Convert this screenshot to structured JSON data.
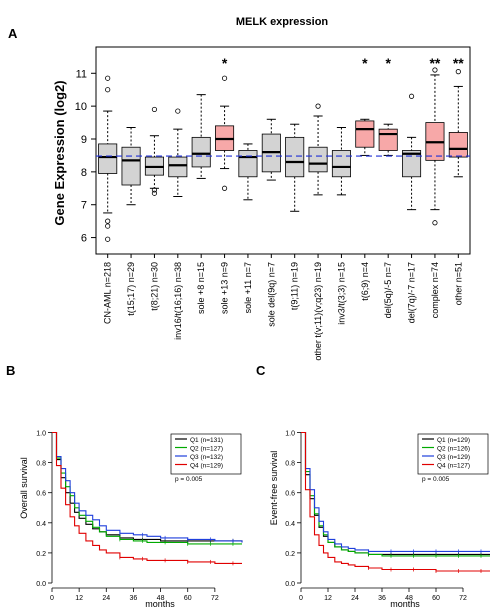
{
  "panels": {
    "a": "A",
    "b": "B",
    "c": "C"
  },
  "chart_data": [
    {
      "type": "boxplot",
      "title": "MELK expression",
      "ylabel": "Gene Expression (log2)",
      "ylim": [
        5.5,
        11.8
      ],
      "yticks": [
        6,
        7,
        8,
        9,
        10,
        11
      ],
      "reference_line": 8.48,
      "categories": [
        "CN-AML  n=218",
        "t(15;17)  n=29",
        "t(8;21)  n=30",
        "inv16/t(16;16)  n=38",
        "sole +8  n=15",
        "sole +13  n=9",
        "sole +11  n=7",
        "sole del(9q)  n=7",
        "t(9;11)  n=19",
        "other t(v;11)(v;q23)  n=19",
        "inv3/t(3;3)  n=15",
        "t(6;9)  n=4",
        "del(5q)/-5  n=7",
        "del(7q)/-7  n=17",
        "complex  n=74",
        "other  n=51"
      ],
      "boxes": [
        {
          "q1": 7.95,
          "median": 8.45,
          "q3": 8.85,
          "low": 6.75,
          "high": 9.85,
          "outliers": [
            10.85,
            10.5,
            6.5,
            6.35,
            5.95
          ],
          "highlight": false,
          "sig": ""
        },
        {
          "q1": 7.6,
          "median": 8.35,
          "q3": 8.75,
          "low": 7.0,
          "high": 9.35,
          "outliers": [],
          "highlight": false,
          "sig": ""
        },
        {
          "q1": 7.9,
          "median": 8.15,
          "q3": 8.45,
          "low": 7.5,
          "high": 9.1,
          "outliers": [
            9.9,
            7.45,
            7.35
          ],
          "highlight": false,
          "sig": ""
        },
        {
          "q1": 7.85,
          "median": 8.2,
          "q3": 8.45,
          "low": 7.25,
          "high": 9.3,
          "outliers": [
            9.85
          ],
          "highlight": false,
          "sig": ""
        },
        {
          "q1": 8.15,
          "median": 8.55,
          "q3": 9.05,
          "low": 7.8,
          "high": 10.35,
          "outliers": [],
          "highlight": false,
          "sig": ""
        },
        {
          "q1": 8.65,
          "median": 9.0,
          "q3": 9.4,
          "low": 8.1,
          "high": 10.0,
          "outliers": [
            10.85,
            7.5
          ],
          "highlight": true,
          "sig": "*"
        },
        {
          "q1": 7.85,
          "median": 8.45,
          "q3": 8.65,
          "low": 7.15,
          "high": 8.85,
          "outliers": [],
          "highlight": false,
          "sig": ""
        },
        {
          "q1": 8.0,
          "median": 8.6,
          "q3": 9.15,
          "low": 7.75,
          "high": 9.6,
          "outliers": [],
          "highlight": false,
          "sig": ""
        },
        {
          "q1": 7.85,
          "median": 8.3,
          "q3": 9.05,
          "low": 6.8,
          "high": 9.45,
          "outliers": [],
          "highlight": false,
          "sig": ""
        },
        {
          "q1": 8.0,
          "median": 8.25,
          "q3": 8.75,
          "low": 7.3,
          "high": 9.7,
          "outliers": [
            10.0
          ],
          "highlight": false,
          "sig": ""
        },
        {
          "q1": 7.85,
          "median": 8.15,
          "q3": 8.65,
          "low": 7.3,
          "high": 9.35,
          "outliers": [],
          "highlight": false,
          "sig": ""
        },
        {
          "q1": 8.75,
          "median": 9.3,
          "q3": 9.55,
          "low": 8.5,
          "high": 9.6,
          "outliers": [],
          "highlight": true,
          "sig": "*"
        },
        {
          "q1": 8.65,
          "median": 9.15,
          "q3": 9.3,
          "low": 8.5,
          "high": 9.45,
          "outliers": [],
          "highlight": true,
          "sig": "*"
        },
        {
          "q1": 7.85,
          "median": 8.55,
          "q3": 8.65,
          "low": 6.85,
          "high": 9.05,
          "outliers": [
            10.3
          ],
          "highlight": false,
          "sig": ""
        },
        {
          "q1": 8.35,
          "median": 8.9,
          "q3": 9.5,
          "low": 6.85,
          "high": 10.95,
          "outliers": [
            11.1,
            6.45
          ],
          "highlight": true,
          "sig": "**"
        },
        {
          "q1": 8.45,
          "median": 8.7,
          "q3": 9.2,
          "low": 7.85,
          "high": 10.6,
          "outliers": [
            11.05
          ],
          "highlight": true,
          "sig": "**"
        }
      ]
    },
    {
      "type": "line",
      "ylabel": "Overall survival",
      "xlabel": "months",
      "xticks": [
        0,
        12,
        24,
        36,
        48,
        60,
        72
      ],
      "yticks": [
        0.0,
        0.2,
        0.4,
        0.6,
        0.8,
        1.0
      ],
      "xlim": [
        0,
        84
      ],
      "ylim": [
        0,
        1.03
      ],
      "legend_position": "top-right",
      "annotation": "p = 0.005",
      "series": [
        {
          "name": "Q1 (n=131)",
          "color": "#000000",
          "x": [
            0,
            2,
            4,
            6,
            8,
            10,
            12,
            15,
            18,
            21,
            24,
            30,
            36,
            42,
            48,
            60,
            72,
            84
          ],
          "y": [
            1.0,
            0.82,
            0.7,
            0.6,
            0.53,
            0.47,
            0.43,
            0.39,
            0.36,
            0.34,
            0.32,
            0.3,
            0.29,
            0.29,
            0.28,
            0.28,
            0.28,
            0.27
          ]
        },
        {
          "name": "Q2 (n=127)",
          "color": "#00aa00",
          "x": [
            0,
            2,
            4,
            6,
            8,
            10,
            12,
            15,
            18,
            21,
            24,
            30,
            36,
            42,
            48,
            60,
            72,
            84
          ],
          "y": [
            1.0,
            0.83,
            0.73,
            0.64,
            0.58,
            0.5,
            0.45,
            0.41,
            0.37,
            0.34,
            0.31,
            0.29,
            0.28,
            0.27,
            0.27,
            0.26,
            0.26,
            0.26
          ]
        },
        {
          "name": "Q3 (n=132)",
          "color": "#1f3fdc",
          "x": [
            0,
            2,
            4,
            6,
            8,
            10,
            12,
            15,
            18,
            21,
            24,
            30,
            36,
            42,
            48,
            60,
            72,
            84
          ],
          "y": [
            1.0,
            0.84,
            0.76,
            0.68,
            0.6,
            0.53,
            0.48,
            0.45,
            0.42,
            0.38,
            0.35,
            0.33,
            0.32,
            0.31,
            0.3,
            0.29,
            0.28,
            0.27
          ]
        },
        {
          "name": "Q4 (n=129)",
          "color": "#e00000",
          "x": [
            0,
            2,
            4,
            6,
            8,
            10,
            12,
            15,
            18,
            21,
            24,
            30,
            36,
            42,
            48,
            60,
            72,
            84
          ],
          "y": [
            1.0,
            0.78,
            0.63,
            0.52,
            0.44,
            0.38,
            0.33,
            0.28,
            0.25,
            0.22,
            0.2,
            0.17,
            0.16,
            0.15,
            0.15,
            0.14,
            0.13,
            0.13
          ]
        }
      ]
    },
    {
      "type": "line",
      "ylabel": "Event-free survival",
      "xlabel": "months",
      "xticks": [
        0,
        12,
        24,
        36,
        48,
        60,
        72
      ],
      "yticks": [
        0.0,
        0.2,
        0.4,
        0.6,
        0.8,
        1.0
      ],
      "xlim": [
        0,
        84
      ],
      "ylim": [
        0,
        1.03
      ],
      "legend_position": "top-right",
      "annotation": "p = 0.005",
      "series": [
        {
          "name": "Q1 (n=129)",
          "color": "#000000",
          "x": [
            0,
            2,
            4,
            6,
            8,
            10,
            12,
            15,
            18,
            21,
            24,
            30,
            36,
            42,
            48,
            60,
            72,
            84
          ],
          "y": [
            1.0,
            0.72,
            0.56,
            0.45,
            0.37,
            0.31,
            0.27,
            0.24,
            0.22,
            0.21,
            0.2,
            0.19,
            0.19,
            0.19,
            0.19,
            0.19,
            0.19,
            0.19
          ]
        },
        {
          "name": "Q2 (n=126)",
          "color": "#00aa00",
          "x": [
            0,
            2,
            4,
            6,
            8,
            10,
            12,
            15,
            18,
            21,
            24,
            30,
            36,
            42,
            48,
            60,
            72,
            84
          ],
          "y": [
            1.0,
            0.74,
            0.58,
            0.46,
            0.38,
            0.32,
            0.27,
            0.24,
            0.22,
            0.21,
            0.2,
            0.19,
            0.18,
            0.18,
            0.18,
            0.18,
            0.18,
            0.18
          ]
        },
        {
          "name": "Q3 (n=129)",
          "color": "#1f3fdc",
          "x": [
            0,
            2,
            4,
            6,
            8,
            10,
            12,
            15,
            18,
            21,
            24,
            30,
            36,
            42,
            48,
            60,
            72,
            84
          ],
          "y": [
            1.0,
            0.76,
            0.62,
            0.5,
            0.41,
            0.34,
            0.29,
            0.26,
            0.24,
            0.23,
            0.22,
            0.21,
            0.21,
            0.21,
            0.21,
            0.21,
            0.21,
            0.21
          ]
        },
        {
          "name": "Q4 (n=127)",
          "color": "#e00000",
          "x": [
            0,
            2,
            4,
            6,
            8,
            10,
            12,
            15,
            18,
            21,
            24,
            30,
            36,
            42,
            48,
            60,
            72,
            84
          ],
          "y": [
            1.0,
            0.62,
            0.44,
            0.32,
            0.25,
            0.2,
            0.17,
            0.14,
            0.13,
            0.12,
            0.11,
            0.1,
            0.09,
            0.09,
            0.09,
            0.08,
            0.08,
            0.08
          ]
        }
      ]
    }
  ]
}
